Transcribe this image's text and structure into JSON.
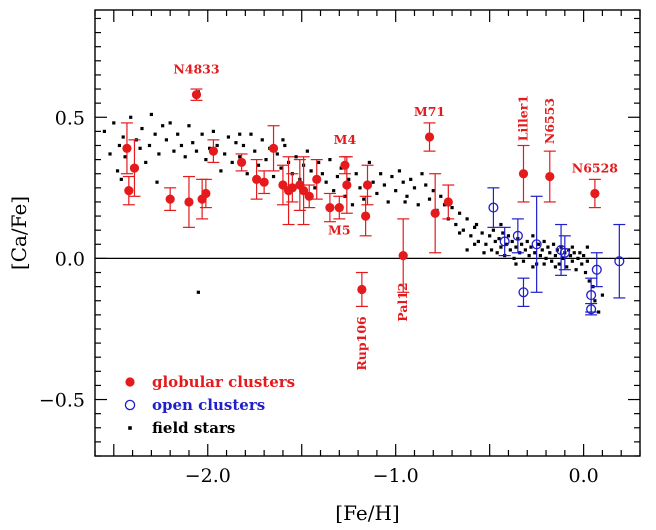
{
  "chart_data": {
    "type": "scatter",
    "xlabel": "[Fe/H]",
    "ylabel": "[Ca/Fe]",
    "xlim": [
      -2.6,
      0.3
    ],
    "ylim": [
      -0.7,
      0.88
    ],
    "x_ticks": [
      {
        "value": -2.0,
        "label": "−2.0"
      },
      {
        "value": -1.0,
        "label": "−1.0"
      },
      {
        "value": 0.0,
        "label": "0.0"
      }
    ],
    "y_ticks": [
      {
        "value": 0.5,
        "label": "0.5"
      },
      {
        "value": 0.0,
        "label": "0.0"
      },
      {
        "value": -0.5,
        "label": "−0.5"
      }
    ],
    "reference_line_y": 0.0,
    "grid": false,
    "legend_position": "bottom-left",
    "colors": {
      "globular": "#e41a1c",
      "open": "#1f1fcc",
      "field": "#000000"
    },
    "legend": [
      {
        "label": "globular clusters",
        "marker": "filled-circle",
        "color": "#e41a1c"
      },
      {
        "label": "open clusters",
        "marker": "open-circle",
        "color": "#1f1fcc"
      },
      {
        "label": "field stars",
        "marker": "small-square",
        "color": "#000000"
      }
    ],
    "series": [
      {
        "name": "globular clusters",
        "marker": "filled-circle",
        "points": [
          {
            "x": -2.43,
            "y": 0.39,
            "err": 0.09
          },
          {
            "x": -2.42,
            "y": 0.24,
            "err": 0.05
          },
          {
            "x": -2.39,
            "y": 0.32,
            "err": 0.1
          },
          {
            "x": -2.2,
            "y": 0.21,
            "err": 0.04
          },
          {
            "x": -2.1,
            "y": 0.2,
            "err": 0.09
          },
          {
            "x": -2.06,
            "y": 0.58,
            "err": 0.02
          },
          {
            "x": -2.03,
            "y": 0.21,
            "err": 0.07
          },
          {
            "x": -2.01,
            "y": 0.23,
            "err": 0.05
          },
          {
            "x": -1.97,
            "y": 0.38,
            "err": 0.04
          },
          {
            "x": -1.82,
            "y": 0.34,
            "err": 0.03
          },
          {
            "x": -1.74,
            "y": 0.28,
            "err": 0.07
          },
          {
            "x": -1.7,
            "y": 0.27,
            "err": 0.04
          },
          {
            "x": -1.65,
            "y": 0.39,
            "err": 0.08
          },
          {
            "x": -1.6,
            "y": 0.26,
            "err": 0.07
          },
          {
            "x": -1.57,
            "y": 0.24,
            "err": 0.12
          },
          {
            "x": -1.55,
            "y": 0.25,
            "err": 0.05
          },
          {
            "x": -1.51,
            "y": 0.26,
            "err": 0.09
          },
          {
            "x": -1.49,
            "y": 0.24,
            "err": 0.12
          },
          {
            "x": -1.46,
            "y": 0.22,
            "err": 0.04
          },
          {
            "x": -1.42,
            "y": 0.28,
            "err": 0.07
          },
          {
            "x": -1.35,
            "y": 0.18,
            "err": 0.05
          },
          {
            "x": -1.3,
            "y": 0.18,
            "err": 0.04
          },
          {
            "x": -1.27,
            "y": 0.33,
            "err": 0.03
          },
          {
            "x": -1.26,
            "y": 0.26,
            "err": 0.1
          },
          {
            "x": -1.18,
            "y": -0.11,
            "err": 0.06
          },
          {
            "x": -1.16,
            "y": 0.15,
            "err": 0.07
          },
          {
            "x": -1.15,
            "y": 0.26,
            "err": 0.07
          },
          {
            "x": -0.96,
            "y": 0.01,
            "err": 0.13
          },
          {
            "x": -0.82,
            "y": 0.43,
            "err": 0.05
          },
          {
            "x": -0.79,
            "y": 0.16,
            "err": 0.14
          },
          {
            "x": -0.72,
            "y": 0.2,
            "err": 0.06
          },
          {
            "x": -0.32,
            "y": 0.3,
            "err": 0.1
          },
          {
            "x": -0.18,
            "y": 0.29,
            "err": 0.09
          },
          {
            "x": 0.06,
            "y": 0.23,
            "err": 0.05
          }
        ]
      },
      {
        "name": "open clusters",
        "marker": "open-circle",
        "points": [
          {
            "x": -0.48,
            "y": 0.18,
            "err": 0.07
          },
          {
            "x": -0.42,
            "y": 0.06,
            "err": 0.05
          },
          {
            "x": -0.35,
            "y": 0.08,
            "err": 0.06
          },
          {
            "x": -0.32,
            "y": -0.12,
            "err": 0.05
          },
          {
            "x": -0.25,
            "y": 0.05,
            "err": 0.17
          },
          {
            "x": -0.12,
            "y": 0.03,
            "err": 0.09
          },
          {
            "x": -0.1,
            "y": 0.02,
            "err": 0.06
          },
          {
            "x": 0.04,
            "y": -0.13,
            "err": 0.06
          },
          {
            "x": 0.04,
            "y": -0.18,
            "err": 0.02
          },
          {
            "x": 0.07,
            "y": -0.04,
            "err": 0.06
          },
          {
            "x": 0.19,
            "y": -0.01,
            "err": 0.13
          }
        ]
      },
      {
        "name": "field stars",
        "marker": "small-square",
        "points": [
          [
            -2.55,
            0.45
          ],
          [
            -2.52,
            0.37
          ],
          [
            -2.5,
            0.48
          ],
          [
            -2.48,
            0.31
          ],
          [
            -2.47,
            0.4
          ],
          [
            -2.46,
            0.28
          ],
          [
            -2.45,
            0.43
          ],
          [
            -2.44,
            0.36
          ],
          [
            -2.41,
            0.5
          ],
          [
            -2.4,
            0.32
          ],
          [
            -2.38,
            0.42
          ],
          [
            -2.36,
            0.39
          ],
          [
            -2.35,
            0.46
          ],
          [
            -2.33,
            0.34
          ],
          [
            -2.31,
            0.4
          ],
          [
            -2.3,
            0.51
          ],
          [
            -2.28,
            0.44
          ],
          [
            -2.26,
            0.37
          ],
          [
            -2.24,
            0.47
          ],
          [
            -2.22,
            0.42
          ],
          [
            -2.2,
            0.48
          ],
          [
            -2.18,
            0.38
          ],
          [
            -2.16,
            0.44
          ],
          [
            -2.14,
            0.4
          ],
          [
            -2.12,
            0.36
          ],
          [
            -2.1,
            0.47
          ],
          [
            -2.08,
            0.41
          ],
          [
            -2.06,
            0.38
          ],
          [
            -2.05,
            0.59
          ],
          [
            -2.03,
            0.44
          ],
          [
            -2.01,
            0.35
          ],
          [
            -1.99,
            0.39
          ],
          [
            -1.97,
            0.45
          ],
          [
            -1.95,
            0.4
          ],
          [
            -1.93,
            0.31
          ],
          [
            -1.91,
            0.37
          ],
          [
            -1.89,
            0.43
          ],
          [
            -1.87,
            0.34
          ],
          [
            -1.85,
            0.41
          ],
          [
            -1.83,
            0.36
          ],
          [
            -1.81,
            0.4
          ],
          [
            -1.79,
            0.3
          ],
          [
            -1.77,
            0.44
          ],
          [
            -1.75,
            0.38
          ],
          [
            -1.73,
            0.33
          ],
          [
            -1.71,
            0.42
          ],
          [
            -1.69,
            0.35
          ],
          [
            -1.67,
            0.39
          ],
          [
            -1.65,
            0.29
          ],
          [
            -1.63,
            0.37
          ],
          [
            -1.61,
            0.32
          ],
          [
            -1.59,
            0.4
          ],
          [
            -1.57,
            0.34
          ],
          [
            -1.55,
            0.3
          ],
          [
            -1.53,
            0.36
          ],
          [
            -1.51,
            0.28
          ],
          [
            -1.49,
            0.33
          ],
          [
            -1.47,
            0.38
          ],
          [
            -1.45,
            0.31
          ],
          [
            -1.43,
            0.25
          ],
          [
            -1.41,
            0.34
          ],
          [
            -1.39,
            0.3
          ],
          [
            -1.37,
            0.27
          ],
          [
            -1.35,
            0.35
          ],
          [
            -1.33,
            0.24
          ],
          [
            -1.31,
            0.29
          ],
          [
            -1.29,
            0.32
          ],
          [
            -1.27,
            0.22
          ],
          [
            -1.25,
            0.28
          ],
          [
            -1.23,
            0.19
          ],
          [
            -1.21,
            0.3
          ],
          [
            -1.19,
            0.25
          ],
          [
            -1.17,
            0.21
          ],
          [
            -1.14,
            0.34
          ],
          [
            -1.12,
            0.27
          ],
          [
            -1.1,
            0.23
          ],
          [
            -1.08,
            0.3
          ],
          [
            -1.06,
            0.26
          ],
          [
            -1.04,
            0.2
          ],
          [
            -1.02,
            0.29
          ],
          [
            -1.0,
            0.24
          ],
          [
            -0.98,
            0.31
          ],
          [
            -0.96,
            0.27
          ],
          [
            -0.94,
            0.22
          ],
          [
            -0.92,
            0.28
          ],
          [
            -0.9,
            0.25
          ],
          [
            -0.88,
            0.19
          ],
          [
            -0.86,
            0.3
          ],
          [
            -0.84,
            0.26
          ],
          [
            -0.82,
            0.21
          ],
          [
            -0.8,
            0.24
          ],
          [
            -0.78,
            0.17
          ],
          [
            -0.76,
            0.22
          ],
          [
            -0.74,
            0.19
          ],
          [
            -0.72,
            0.14
          ],
          [
            -0.7,
            0.18
          ],
          [
            -0.68,
            0.12
          ],
          [
            -0.66,
            0.16
          ],
          [
            -0.64,
            0.1
          ],
          [
            -0.62,
            0.14
          ],
          [
            -0.6,
            0.08
          ],
          [
            -0.58,
            0.11
          ],
          [
            -0.56,
            0.06
          ],
          [
            -0.54,
            0.09
          ],
          [
            -0.52,
            0.05
          ],
          [
            -0.5,
            0.08
          ],
          [
            -0.49,
            0.03
          ],
          [
            -0.48,
            0.1
          ],
          [
            -0.47,
            0.06
          ],
          [
            -0.46,
            0.02
          ],
          [
            -0.45,
            0.07
          ],
          [
            -0.44,
            0.04
          ],
          [
            -0.43,
            0.09
          ],
          [
            -0.42,
            0.01
          ],
          [
            -0.41,
            0.05
          ],
          [
            -0.4,
            0.08
          ],
          [
            -0.39,
            0.03
          ],
          [
            -0.38,
            0.06
          ],
          [
            -0.37,
            0.0
          ],
          [
            -0.36,
            0.04
          ],
          [
            -0.35,
            0.07
          ],
          [
            -0.34,
            0.02
          ],
          [
            -0.33,
            0.05
          ],
          [
            -0.32,
            -0.01
          ],
          [
            -0.31,
            0.03
          ],
          [
            -0.3,
            0.06
          ],
          [
            -0.29,
            0.01
          ],
          [
            -0.28,
            0.04
          ],
          [
            -0.27,
            0.08
          ],
          [
            -0.26,
            0.02
          ],
          [
            -0.25,
            -0.02
          ],
          [
            -0.24,
            0.05
          ],
          [
            -0.23,
            0.01
          ],
          [
            -0.22,
            0.03
          ],
          [
            -0.21,
            0.06
          ],
          [
            -0.2,
            0.0
          ],
          [
            -0.19,
            0.04
          ],
          [
            -0.18,
            0.02
          ],
          [
            -0.17,
            -0.01
          ],
          [
            -0.16,
            0.05
          ],
          [
            -0.15,
            0.01
          ],
          [
            -0.14,
            0.03
          ],
          [
            -0.13,
            -0.02
          ],
          [
            -0.12,
            0.04
          ],
          [
            -0.11,
            0.0
          ],
          [
            -0.1,
            0.02
          ],
          [
            -0.09,
            -0.03
          ],
          [
            -0.08,
            0.03
          ],
          [
            -0.07,
            0.01
          ],
          [
            -0.06,
            -0.01
          ],
          [
            -0.05,
            0.02
          ],
          [
            -0.04,
            -0.04
          ],
          [
            -0.03,
            0.0
          ],
          [
            -0.02,
            0.02
          ],
          [
            -0.01,
            -0.02
          ],
          [
            0.0,
            0.01
          ],
          [
            0.01,
            -0.05
          ],
          [
            0.02,
            -0.01
          ],
          [
            0.03,
            -0.08
          ],
          [
            0.05,
            -0.1
          ],
          [
            0.06,
            -0.15
          ],
          [
            0.08,
            -0.19
          ],
          [
            0.1,
            -0.13
          ],
          [
            -2.05,
            -0.12
          ],
          [
            -0.95,
            0.2
          ],
          [
            -1.6,
            0.42
          ],
          [
            -2.27,
            0.27
          ],
          [
            -1.83,
            0.44
          ],
          [
            -0.57,
            0.12
          ],
          [
            -0.53,
            0.02
          ],
          [
            -0.44,
            0.12
          ],
          [
            -0.36,
            -0.02
          ],
          [
            -0.27,
            -0.03
          ],
          [
            -0.21,
            -0.02
          ],
          [
            -0.15,
            -0.03
          ],
          [
            -0.06,
            0.04
          ],
          [
            0.02,
            0.04
          ],
          [
            -0.62,
            0.03
          ],
          [
            -0.58,
            0.05
          ],
          [
            -0.66,
            0.09
          ]
        ]
      }
    ],
    "annotations": [
      {
        "text": "N4833",
        "x": -2.06,
        "y": 0.58,
        "placement": "above",
        "rotated": false
      },
      {
        "text": "M71",
        "x": -0.82,
        "y": 0.43,
        "placement": "above",
        "rotated": false
      },
      {
        "text": "M4",
        "x": -1.27,
        "y": 0.33,
        "placement": "above",
        "rotated": false
      },
      {
        "text": "M5",
        "x": -1.3,
        "y": 0.18,
        "placement": "below",
        "rotated": false
      },
      {
        "text": "Liller1",
        "x": -0.32,
        "y": 0.3,
        "placement": "above",
        "rotated": true
      },
      {
        "text": "N6553",
        "x": -0.18,
        "y": 0.29,
        "placement": "above",
        "rotated": true
      },
      {
        "text": "N6528",
        "x": 0.06,
        "y": 0.23,
        "placement": "above",
        "rotated": false
      },
      {
        "text": "Rup106",
        "x": -1.18,
        "y": -0.11,
        "placement": "below",
        "rotated": true
      },
      {
        "text": "Pal12",
        "x": -0.96,
        "y": 0.01,
        "placement": "below",
        "rotated": true
      }
    ]
  }
}
